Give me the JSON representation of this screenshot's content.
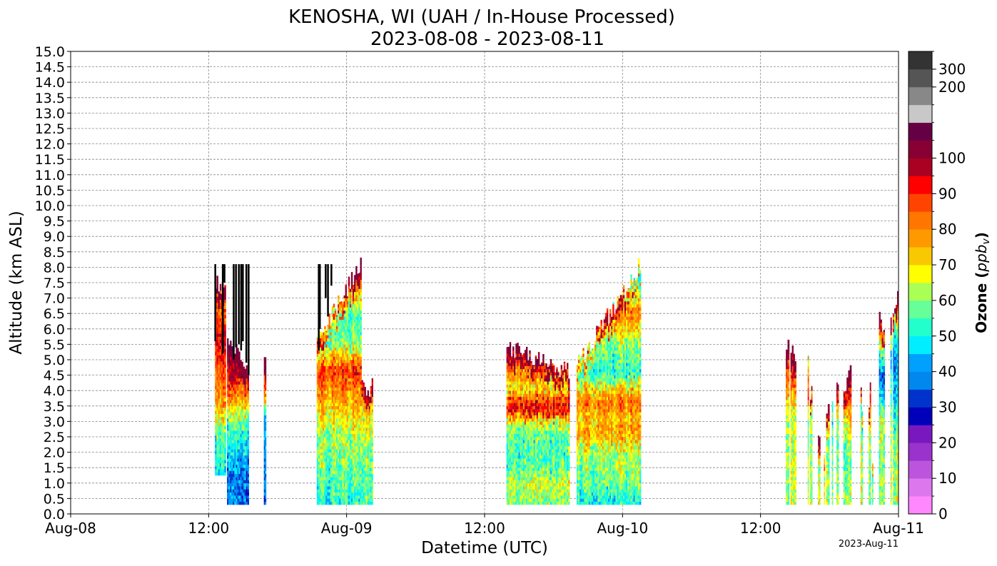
{
  "chart_data": {
    "type": "heatmap",
    "title_line1": "KENOSHA, WI (UAH / In-House Processed)",
    "title_line2": "2023-08-08 - 2023-08-11",
    "xlabel": "Datetime (UTC)",
    "ylabel": "Altitude (km ASL)",
    "x_units": "hours since 2023-08-08 00:00 UTC",
    "xlim": [
      0,
      72
    ],
    "ylim": [
      0,
      15
    ],
    "grid": true,
    "x_ticks": [
      {
        "value": 0,
        "label": "Aug-08"
      },
      {
        "value": 12,
        "label": "12:00"
      },
      {
        "value": 24,
        "label": "Aug-09"
      },
      {
        "value": 36,
        "label": "12:00"
      },
      {
        "value": 48,
        "label": "Aug-10"
      },
      {
        "value": 60,
        "label": "12:00"
      },
      {
        "value": 72,
        "label": "Aug-11"
      }
    ],
    "y_ticks": [
      "0.0",
      "0.5",
      "1.0",
      "1.5",
      "2.0",
      "2.5",
      "3.0",
      "3.5",
      "4.0",
      "4.5",
      "5.0",
      "5.5",
      "6.0",
      "6.5",
      "7.0",
      "7.5",
      "8.0",
      "8.5",
      "9.0",
      "9.5",
      "10.0",
      "10.5",
      "11.0",
      "11.5",
      "12.0",
      "12.5",
      "13.0",
      "13.5",
      "14.0",
      "14.5",
      "15.0"
    ],
    "footer_date": "2023-Aug-11",
    "colorbar": {
      "label": "Ozone (",
      "label_unit": "ppb",
      "label_sub": "v",
      "label_close": ")",
      "bounds": [
        0,
        5,
        10,
        15,
        20,
        25,
        30,
        35,
        40,
        45,
        50,
        55,
        60,
        65,
        70,
        75,
        80,
        85,
        90,
        95,
        100,
        125,
        150,
        175,
        200,
        300,
        400
      ],
      "colors": [
        "#ff88ff",
        "#dd77ee",
        "#bb55dd",
        "#9933cc",
        "#7a18c0",
        "#0000bb",
        "#0033cc",
        "#0088ee",
        "#00a0ff",
        "#00eeff",
        "#22ffcc",
        "#66ff99",
        "#aaff55",
        "#ffff00",
        "#f8c800",
        "#ff9900",
        "#ff7700",
        "#ff4400",
        "#ff0000",
        "#aa0022",
        "#880033",
        "#660044",
        "#c8c8c8",
        "#888888",
        "#555555",
        "#333333"
      ],
      "over_color": "#000000",
      "ticks": [
        {
          "value": 0,
          "label": "0"
        },
        {
          "value": 10,
          "label": "10"
        },
        {
          "value": 20,
          "label": "20"
        },
        {
          "value": 30,
          "label": "30"
        },
        {
          "value": 40,
          "label": "40"
        },
        {
          "value": 50,
          "label": "50"
        },
        {
          "value": 60,
          "label": "60"
        },
        {
          "value": 70,
          "label": "70"
        },
        {
          "value": 80,
          "label": "80"
        },
        {
          "value": 90,
          "label": "90"
        },
        {
          "value": 100,
          "label": "100"
        },
        {
          "value": 200,
          "label": "200"
        },
        {
          "value": 300,
          "label": "300"
        }
      ]
    },
    "segments": [
      {
        "t": [
          12.55,
          13.5
        ],
        "bottom": 1.25,
        "top": [
          7.6,
          7.2
        ],
        "profile": [
          [
            1.25,
            48
          ],
          [
            2.5,
            55
          ],
          [
            3.0,
            64
          ],
          [
            3.7,
            78
          ],
          [
            4.5,
            84
          ],
          [
            5.5,
            92
          ],
          [
            6.5,
            82
          ],
          [
            7.6,
            98
          ]
        ]
      },
      {
        "t": [
          13.6,
          15.5
        ],
        "bottom": 0.3,
        "top": [
          5.8,
          4.6
        ],
        "profile": [
          [
            0.3,
            37
          ],
          [
            1.5,
            39
          ],
          [
            2.0,
            47
          ],
          [
            2.8,
            55
          ],
          [
            3.3,
            68
          ],
          [
            4.0,
            86
          ],
          [
            4.5,
            96
          ],
          [
            5.5,
            105
          ]
        ]
      },
      {
        "t": [
          16.8,
          17.0
        ],
        "bottom": 0.3,
        "top": [
          4.9,
          4.9
        ],
        "profile": [
          [
            0.3,
            38
          ],
          [
            3.0,
            45
          ],
          [
            4.0,
            88
          ],
          [
            4.9,
            102
          ]
        ]
      },
      {
        "t": [
          21.4,
          25.3
        ],
        "bottom": 0.3,
        "top": [
          5.6,
          8.1
        ],
        "profile": [
          [
            0.3,
            52
          ],
          [
            1.5,
            58
          ],
          [
            2.5,
            62
          ],
          [
            3.0,
            68
          ],
          [
            3.5,
            75
          ],
          [
            4.0,
            80
          ],
          [
            4.6,
            90
          ],
          [
            5.5,
            58
          ],
          [
            6.5,
            55
          ],
          [
            7.5,
            88
          ],
          [
            8.1,
            100
          ]
        ]
      },
      {
        "t": [
          25.3,
          26.3
        ],
        "bottom": 0.3,
        "top": [
          4.1,
          4.1
        ],
        "profile": [
          [
            0.3,
            55
          ],
          [
            2.0,
            60
          ],
          [
            3.0,
            70
          ],
          [
            3.7,
            82
          ],
          [
            4.1,
            85
          ]
        ]
      },
      {
        "t": [
          37.9,
          43.4
        ],
        "bottom": 0.3,
        "top": [
          5.4,
          4.6
        ],
        "profile": [
          [
            0.3,
            60
          ],
          [
            1.0,
            65
          ],
          [
            1.5,
            55
          ],
          [
            2.5,
            56
          ],
          [
            2.9,
            66
          ],
          [
            3.3,
            94
          ],
          [
            3.6,
            88
          ],
          [
            4.0,
            68
          ],
          [
            4.5,
            80
          ],
          [
            5.4,
            98
          ]
        ]
      },
      {
        "t": [
          44.0,
          49.6
        ],
        "bottom": 0.3,
        "top": [
          4.8,
          8.1
        ],
        "profile": [
          [
            0.3,
            50
          ],
          [
            1.0,
            58
          ],
          [
            2.0,
            63
          ],
          [
            2.6,
            78
          ],
          [
            3.0,
            72
          ],
          [
            3.5,
            83
          ],
          [
            3.9,
            74
          ],
          [
            4.5,
            52
          ],
          [
            5.5,
            60
          ],
          [
            6.5,
            82
          ],
          [
            7.5,
            45
          ],
          [
            8.1,
            50
          ]
        ]
      },
      {
        "t": [
          62.2,
          62.5
        ],
        "bottom": 0.3,
        "top": [
          5.4,
          5.4
        ],
        "profile": [
          [
            0.3,
            60
          ],
          [
            2.8,
            60
          ],
          [
            3.5,
            68
          ],
          [
            4.5,
            88
          ],
          [
            5.4,
            95
          ]
        ]
      },
      {
        "t": [
          62.6,
          63.1
        ],
        "bottom": 0.3,
        "top": [
          5.4,
          5.0
        ],
        "profile": [
          [
            0.3,
            64
          ],
          [
            2.8,
            62
          ],
          [
            3.5,
            70
          ],
          [
            4.5,
            90
          ],
          [
            5.4,
            95
          ]
        ]
      },
      {
        "t": [
          64.1,
          64.2
        ],
        "bottom": 0.3,
        "top": [
          5.3,
          5.3
        ],
        "profile": [
          [
            0.3,
            62
          ],
          [
            3.0,
            58
          ],
          [
            4.0,
            90
          ],
          [
            5.3,
            20
          ]
        ]
      },
      {
        "t": [
          64.3,
          64.5
        ],
        "bottom": 0.3,
        "top": [
          4.0,
          4.0
        ],
        "profile": [
          [
            0.3,
            62
          ],
          [
            3.0,
            60
          ],
          [
            4.0,
            88
          ]
        ]
      },
      {
        "t": [
          65.0,
          65.2
        ],
        "bottom": 0.3,
        "top": [
          2.4,
          2.4
        ],
        "profile": [
          [
            0.3,
            66
          ],
          [
            1.5,
            60
          ],
          [
            2.4,
            100
          ]
        ]
      },
      {
        "t": [
          65.5,
          65.6
        ],
        "bottom": 0.3,
        "top": [
          2.0,
          2.0
        ],
        "profile": [
          [
            0.3,
            68
          ],
          [
            2.0,
            62
          ]
        ]
      },
      {
        "t": [
          65.7,
          66.0
        ],
        "bottom": 0.3,
        "top": [
          3.3,
          3.3
        ],
        "profile": [
          [
            0.3,
            62
          ],
          [
            2.0,
            58
          ],
          [
            3.3,
            80
          ]
        ]
      },
      {
        "t": [
          66.2,
          66.3
        ],
        "bottom": 0.3,
        "top": [
          3.5,
          3.5
        ],
        "profile": [
          [
            0.3,
            62
          ],
          [
            2.5,
            60
          ],
          [
            3.5,
            40
          ]
        ]
      },
      {
        "t": [
          66.6,
          66.8
        ],
        "bottom": 0.3,
        "top": [
          4.0,
          4.0
        ],
        "profile": [
          [
            0.3,
            62
          ],
          [
            2.5,
            56
          ],
          [
            4.0,
            92
          ]
        ]
      },
      {
        "t": [
          67.2,
          67.9
        ],
        "bottom": 0.3,
        "top": [
          4.0,
          4.7
        ],
        "profile": [
          [
            0.3,
            62
          ],
          [
            2.0,
            55
          ],
          [
            3.0,
            70
          ],
          [
            4.0,
            92
          ],
          [
            4.7,
            100
          ]
        ]
      },
      {
        "t": [
          68.7,
          68.9
        ],
        "bottom": 0.3,
        "top": [
          4.1,
          3.6
        ],
        "profile": [
          [
            0.3,
            64
          ],
          [
            2.5,
            60
          ],
          [
            3.5,
            40
          ],
          [
            4.1,
            90
          ]
        ]
      },
      {
        "t": [
          69.4,
          69.6
        ],
        "bottom": 0.3,
        "top": [
          3.3,
          4.0
        ],
        "profile": [
          [
            0.3,
            64
          ],
          [
            2.0,
            60
          ],
          [
            3.5,
            85
          ]
        ]
      },
      {
        "t": [
          69.7,
          69.8
        ],
        "bottom": 0.3,
        "top": [
          1.5,
          1.5
        ],
        "profile": [
          [
            0.3,
            62
          ],
          [
            1.5,
            60
          ]
        ]
      },
      {
        "t": [
          70.3,
          70.8
        ],
        "bottom": 0.3,
        "top": [
          6.4,
          5.7
        ],
        "profile": [
          [
            0.3,
            62
          ],
          [
            1.5,
            60
          ],
          [
            3.0,
            65
          ],
          [
            4.5,
            35
          ],
          [
            5.5,
            70
          ],
          [
            6.4,
            98
          ]
        ]
      },
      {
        "t": [
          71.3,
          71.4
        ],
        "bottom": 0.3,
        "top": [
          6.5,
          6.5
        ],
        "profile": [
          [
            0.3,
            62
          ],
          [
            3.0,
            62
          ],
          [
            5.0,
            40
          ],
          [
            6.5,
            98
          ]
        ]
      },
      {
        "t": [
          71.5,
          72.0
        ],
        "bottom": 0.3,
        "top": [
          6.6,
          7.0
        ],
        "profile": [
          [
            0.3,
            62
          ],
          [
            2.0,
            60
          ],
          [
            3.5,
            48
          ],
          [
            5.0,
            40
          ],
          [
            6.0,
            55
          ],
          [
            7.0,
            100
          ]
        ]
      }
    ],
    "high_columns": {
      "value": 500,
      "top": 8.1,
      "items": [
        [
          12.5,
          5.6
        ],
        [
          13.15,
          5.2
        ],
        [
          13.3,
          7.5
        ],
        [
          14.1,
          5.0
        ],
        [
          14.3,
          5.4
        ],
        [
          14.55,
          5.5
        ],
        [
          14.75,
          5.3
        ],
        [
          14.9,
          5.6
        ],
        [
          15.2,
          4.9
        ],
        [
          15.4,
          4.5
        ],
        [
          21.5,
          5.3
        ],
        [
          21.6,
          6.0
        ],
        [
          22.1,
          7.0
        ],
        [
          22.3,
          6.4
        ],
        [
          22.6,
          7.4
        ]
      ]
    }
  }
}
